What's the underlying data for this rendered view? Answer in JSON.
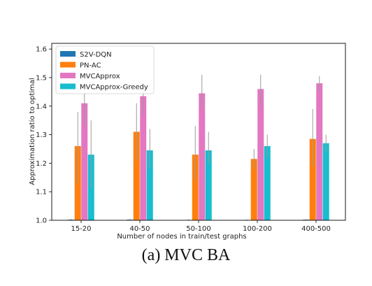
{
  "caption": "(a) MVC BA",
  "chart_data": {
    "type": "bar",
    "title": "",
    "xlabel": "Number of nodes in train/test graphs",
    "ylabel": "Approximation ratio to optimal",
    "categories": [
      "15-20",
      "40-50",
      "50-100",
      "100-200",
      "400-500"
    ],
    "ylim": [
      1.0,
      1.62
    ],
    "yticks": [
      1.0,
      1.1,
      1.2,
      1.3,
      1.4,
      1.5,
      1.6
    ],
    "ytick_labels": [
      "1.0",
      "1.1",
      "1.2",
      "1.3",
      "1.4",
      "1.5",
      "1.6"
    ],
    "grid": false,
    "legend_position": "upper-left",
    "series": [
      {
        "name": "S2V-DQN",
        "color": "#1f77b4",
        "values": [
          1.002,
          1.002,
          1.001,
          1.001,
          1.002
        ],
        "err_low": [
          1.0,
          1.0,
          1.0,
          1.0,
          1.0
        ],
        "err_high": [
          1.005,
          1.005,
          1.004,
          1.003,
          1.004
        ]
      },
      {
        "name": "PN-AC",
        "color": "#ff7f0e",
        "values": [
          1.26,
          1.31,
          1.23,
          1.215,
          1.285
        ],
        "err_low": [
          1.13,
          1.21,
          1.14,
          1.18,
          1.19
        ],
        "err_high": [
          1.38,
          1.41,
          1.33,
          1.25,
          1.39
        ]
      },
      {
        "name": "MVCApprox",
        "color": "#e377c2",
        "values": [
          1.41,
          1.435,
          1.445,
          1.46,
          1.48
        ],
        "err_low": [
          1.33,
          1.37,
          1.39,
          1.4,
          1.45
        ],
        "err_high": [
          1.46,
          1.47,
          1.51,
          1.51,
          1.505
        ]
      },
      {
        "name": "MVCApprox-Greedy",
        "color": "#17becf",
        "values": [
          1.23,
          1.245,
          1.245,
          1.26,
          1.27
        ],
        "err_low": [
          1.11,
          1.18,
          1.2,
          1.22,
          1.24
        ],
        "err_high": [
          1.35,
          1.32,
          1.31,
          1.3,
          1.3
        ]
      }
    ]
  }
}
